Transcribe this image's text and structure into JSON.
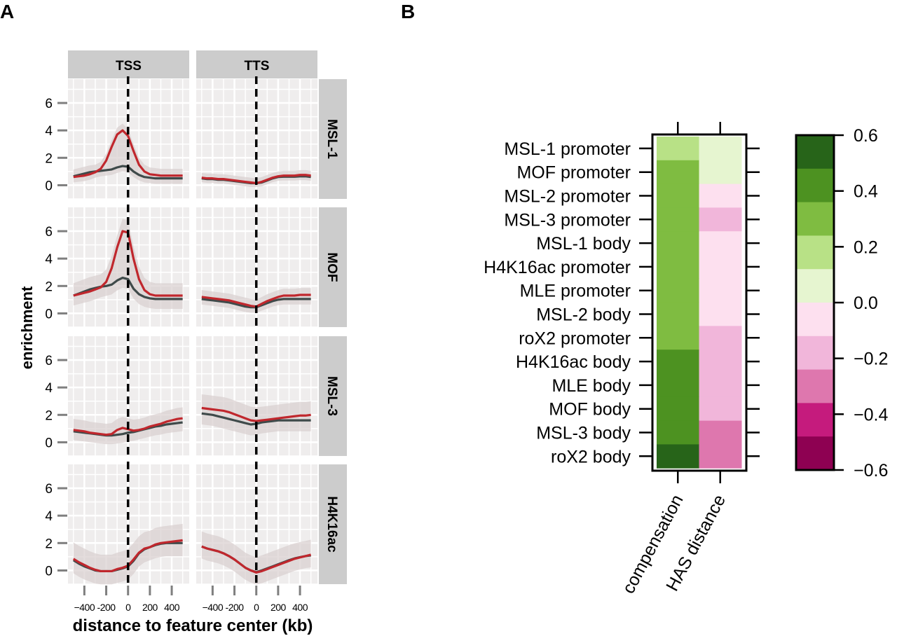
{
  "panel_labels": {
    "a": "A",
    "b": "B"
  },
  "chart_data": [
    {
      "type": "line",
      "panel": "A",
      "columns": [
        "TSS",
        "TTS"
      ],
      "rows": [
        "MSL-1",
        "MOF",
        "MSL-3",
        "H4K16ac"
      ],
      "xlabel": "distance to feature center (kb)",
      "ylabel": "enrichment",
      "xlim": [
        -550,
        560
      ],
      "ylim": [
        -1,
        7.74
      ],
      "xticks": [
        -400,
        -200,
        0,
        200,
        400
      ],
      "xtick_labels": [
        "−400",
        "-200",
        "0",
        "200",
        "400"
      ],
      "yticks": [
        0,
        2,
        4,
        6
      ],
      "ytick_labels": [
        "0",
        "2",
        "4",
        "6"
      ],
      "grid": true,
      "vline_at": 0,
      "series_colors": {
        "red": "#c0272d",
        "gray": "#3f4a4a"
      },
      "x": [
        -500,
        -450,
        -400,
        -350,
        -300,
        -250,
        -200,
        -150,
        -100,
        -50,
        0,
        50,
        100,
        150,
        200,
        250,
        300,
        350,
        400,
        450,
        500
      ],
      "panels": [
        {
          "row": "MSL-1",
          "col": "TSS",
          "band": 0.5,
          "red": [
            0.6,
            0.65,
            0.7,
            0.8,
            0.95,
            1.2,
            1.8,
            2.8,
            3.7,
            4.0,
            3.6,
            2.5,
            1.5,
            1.0,
            0.8,
            0.75,
            0.7,
            0.7,
            0.7,
            0.7,
            0.7
          ],
          "gray": [
            0.65,
            0.75,
            0.85,
            0.95,
            1.0,
            1.05,
            1.1,
            1.15,
            1.3,
            1.4,
            1.35,
            1.0,
            0.75,
            0.6,
            0.55,
            0.5,
            0.5,
            0.5,
            0.5,
            0.5,
            0.5
          ]
        },
        {
          "row": "MSL-1",
          "col": "TTS",
          "band": 0.35,
          "red": [
            0.55,
            0.5,
            0.5,
            0.45,
            0.45,
            0.4,
            0.35,
            0.3,
            0.25,
            0.2,
            0.15,
            0.25,
            0.4,
            0.55,
            0.65,
            0.7,
            0.7,
            0.7,
            0.75,
            0.75,
            0.7
          ],
          "gray": [
            0.5,
            0.45,
            0.45,
            0.4,
            0.4,
            0.35,
            0.3,
            0.25,
            0.2,
            0.15,
            0.15,
            0.2,
            0.35,
            0.5,
            0.6,
            0.62,
            0.62,
            0.62,
            0.65,
            0.65,
            0.6
          ]
        },
        {
          "row": "MOF",
          "col": "TSS",
          "band": 0.9,
          "red": [
            1.3,
            1.4,
            1.5,
            1.6,
            1.75,
            1.9,
            2.3,
            3.3,
            4.8,
            6.0,
            5.9,
            4.0,
            2.5,
            1.7,
            1.4,
            1.3,
            1.3,
            1.3,
            1.3,
            1.3,
            1.3
          ],
          "gray": [
            1.3,
            1.45,
            1.6,
            1.75,
            1.85,
            1.95,
            2.0,
            2.1,
            2.4,
            2.6,
            2.5,
            1.8,
            1.4,
            1.2,
            1.1,
            1.05,
            1.05,
            1.05,
            1.05,
            1.05,
            1.05
          ]
        },
        {
          "row": "MOF",
          "col": "TTS",
          "band": 0.5,
          "red": [
            1.2,
            1.15,
            1.1,
            1.05,
            1.0,
            0.95,
            0.85,
            0.75,
            0.65,
            0.55,
            0.5,
            0.7,
            0.9,
            1.05,
            1.2,
            1.3,
            1.3,
            1.3,
            1.35,
            1.35,
            1.35
          ],
          "gray": [
            1.05,
            1.0,
            0.95,
            0.9,
            0.85,
            0.8,
            0.7,
            0.6,
            0.5,
            0.45,
            0.45,
            0.6,
            0.75,
            0.9,
            1.0,
            1.05,
            1.05,
            1.05,
            1.05,
            1.05,
            1.05
          ]
        },
        {
          "row": "MSL-3",
          "col": "TSS",
          "band": 0.8,
          "red": [
            0.9,
            0.85,
            0.8,
            0.7,
            0.65,
            0.6,
            0.55,
            0.6,
            0.9,
            1.05,
            0.95,
            0.85,
            0.9,
            1.0,
            1.15,
            1.25,
            1.35,
            1.5,
            1.6,
            1.7,
            1.75
          ],
          "gray": [
            0.8,
            0.75,
            0.7,
            0.65,
            0.6,
            0.55,
            0.5,
            0.5,
            0.55,
            0.6,
            0.7,
            0.75,
            0.85,
            0.95,
            1.05,
            1.15,
            1.2,
            1.3,
            1.35,
            1.4,
            1.45
          ]
        },
        {
          "row": "MSL-3",
          "col": "TTS",
          "band": 1.0,
          "red": [
            2.5,
            2.45,
            2.4,
            2.35,
            2.3,
            2.2,
            2.05,
            1.9,
            1.75,
            1.6,
            1.55,
            1.6,
            1.65,
            1.7,
            1.75,
            1.8,
            1.85,
            1.9,
            1.95,
            1.95,
            2.0
          ],
          "gray": [
            2.1,
            2.05,
            2.0,
            1.9,
            1.8,
            1.7,
            1.6,
            1.5,
            1.4,
            1.3,
            1.35,
            1.45,
            1.5,
            1.55,
            1.6,
            1.6,
            1.6,
            1.6,
            1.6,
            1.6,
            1.6
          ]
        },
        {
          "row": "H4K16ac",
          "col": "TSS",
          "band": 1.2,
          "red": [
            0.85,
            0.6,
            0.4,
            0.2,
            0.05,
            -0.05,
            -0.05,
            -0.05,
            0.1,
            0.2,
            0.35,
            0.8,
            1.3,
            1.6,
            1.7,
            1.9,
            2.0,
            2.05,
            2.1,
            2.15,
            2.2
          ],
          "gray": [
            0.75,
            0.5,
            0.3,
            0.15,
            0.0,
            -0.05,
            -0.05,
            -0.05,
            0.05,
            0.15,
            0.3,
            0.7,
            1.25,
            1.55,
            1.7,
            1.85,
            1.95,
            2.0,
            2.0,
            2.0,
            2.0
          ]
        },
        {
          "row": "H4K16ac",
          "col": "TTS",
          "band": 1.1,
          "red": [
            1.75,
            1.6,
            1.5,
            1.4,
            1.25,
            1.05,
            0.8,
            0.5,
            0.2,
            0.0,
            -0.15,
            -0.05,
            0.1,
            0.25,
            0.4,
            0.55,
            0.7,
            0.85,
            0.95,
            1.05,
            1.15
          ],
          "gray": [
            1.75,
            1.6,
            1.5,
            1.4,
            1.25,
            1.05,
            0.8,
            0.5,
            0.2,
            0.0,
            -0.12,
            0.0,
            0.15,
            0.3,
            0.45,
            0.6,
            0.75,
            0.88,
            0.97,
            1.05,
            1.1
          ]
        }
      ]
    },
    {
      "type": "heatmap",
      "panel": "B",
      "rows": [
        "MSL-1 promoter",
        "MOF promoter",
        "MSL-2 promoter",
        "MSL-3 promoter",
        "MSL-1 body",
        "H4K16ac promoter",
        "MLE promoter",
        "MSL-2 body",
        "roX2 promoter",
        "H4K16ac body",
        "MLE body",
        "MOF body",
        "MSL-3 body",
        "roX2 body"
      ],
      "columns": [
        "compensation",
        "HAS distance"
      ],
      "values": [
        [
          0.18,
          0.06
        ],
        [
          0.3,
          0.06
        ],
        [
          0.3,
          -0.06
        ],
        [
          0.3,
          -0.18
        ],
        [
          0.3,
          -0.06
        ],
        [
          0.3,
          -0.06
        ],
        [
          0.3,
          -0.06
        ],
        [
          0.3,
          -0.06
        ],
        [
          0.3,
          -0.18
        ],
        [
          0.42,
          -0.18
        ],
        [
          0.42,
          -0.18
        ],
        [
          0.42,
          -0.18
        ],
        [
          0.42,
          -0.3
        ],
        [
          0.54,
          -0.3
        ]
      ],
      "color_scale": {
        "range": [
          -0.6,
          0.6
        ],
        "breaks": [
          0.6,
          0.48,
          0.36,
          0.24,
          0.12,
          0.0,
          -0.12,
          -0.24,
          -0.36,
          -0.48,
          -0.6
        ],
        "colors": [
          "#276419",
          "#4d9221",
          "#7fbc41",
          "#b8e186",
          "#e6f5d0",
          "#fde0ef",
          "#f1b6da",
          "#de77ae",
          "#c51b7d",
          "#8e0152"
        ],
        "ticks": [
          0.6,
          0.4,
          0.2,
          0.0,
          -0.2,
          -0.4,
          -0.6
        ],
        "tick_labels": [
          "0.6",
          "0.4",
          "0.2",
          "0.0",
          "−0.2",
          "−0.4",
          "−0.6"
        ]
      }
    }
  ]
}
